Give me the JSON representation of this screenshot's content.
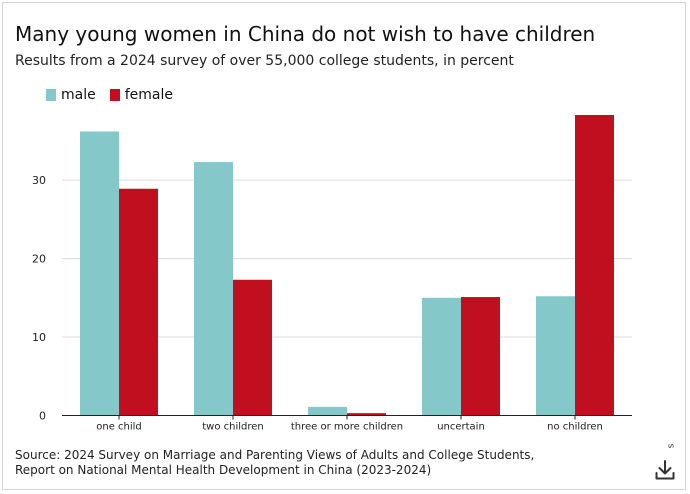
{
  "title": "Many young women in China do not wish to have children",
  "subtitle": "Results from a 2024 survey of over 55,000 college students, in percent",
  "source_lines": [
    "Source: 2024 Survey on Marriage and Parenting Views of Adults and College Students,",
    "Report on National Mental Health Development in China (2023-2024)"
  ],
  "side_note": "s",
  "download_icon": "download-icon",
  "chart_data": {
    "type": "bar",
    "categories": [
      "one child",
      "two children",
      "three or more children",
      "uncertain",
      "no children"
    ],
    "series": [
      {
        "name": "male",
        "color": "#84c8ca",
        "values": [
          36.2,
          32.3,
          1.1,
          15.0,
          15.2
        ]
      },
      {
        "name": "female",
        "color": "#c0101f",
        "values": [
          28.9,
          17.3,
          0.3,
          15.1,
          38.3
        ]
      }
    ],
    "y_ticks": [
      0,
      10,
      20,
      30
    ],
    "ylim": [
      0,
      38.3
    ],
    "grid": true,
    "legend_position": "top-left"
  }
}
